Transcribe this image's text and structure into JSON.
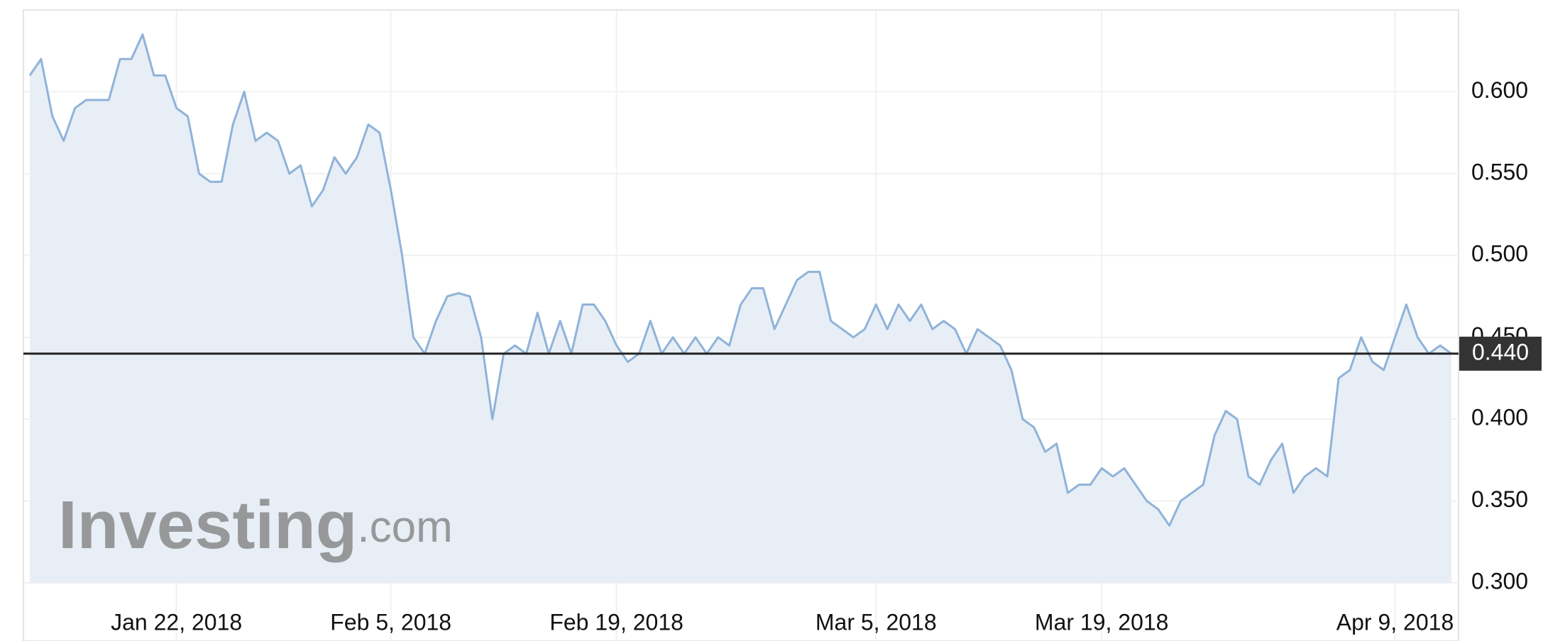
{
  "chart_data": {
    "type": "area",
    "categories": [
      null,
      null,
      null,
      null,
      null,
      null,
      null,
      null,
      null,
      null,
      null,
      null,
      null,
      "Jan 22, 2018",
      null,
      null,
      null,
      null,
      null,
      null,
      null,
      null,
      null,
      null,
      null,
      null,
      null,
      null,
      null,
      null,
      null,
      null,
      "Feb 5, 2018",
      null,
      null,
      null,
      null,
      null,
      null,
      null,
      null,
      null,
      null,
      null,
      null,
      null,
      null,
      null,
      null,
      null,
      null,
      null,
      "Feb 19, 2018",
      null,
      null,
      null,
      null,
      null,
      null,
      null,
      null,
      null,
      null,
      null,
      null,
      null,
      null,
      null,
      null,
      null,
      null,
      null,
      null,
      null,
      null,
      "Mar 5, 2018",
      null,
      null,
      null,
      null,
      null,
      null,
      null,
      null,
      null,
      null,
      null,
      null,
      null,
      null,
      null,
      null,
      null,
      null,
      null,
      "Mar 19, 2018",
      null,
      null,
      null,
      null,
      null,
      null,
      null,
      null,
      null,
      null,
      null,
      null,
      null,
      null,
      null,
      null,
      null,
      null,
      null,
      null,
      null,
      null,
      null,
      null,
      null,
      "Apr 9, 2018",
      null,
      null,
      null,
      null,
      null
    ],
    "series": [
      {
        "color": "#8fb3d9",
        "values": [
          0.61,
          0.62,
          0.585,
          0.57,
          0.59,
          0.595,
          0.595,
          0.595,
          0.62,
          0.62,
          0.635,
          0.61,
          0.61,
          0.59,
          0.585,
          0.55,
          0.545,
          0.545,
          0.58,
          0.6,
          0.57,
          0.575,
          0.57,
          0.55,
          0.555,
          0.53,
          0.54,
          0.56,
          0.55,
          0.56,
          0.58,
          0.575,
          0.54,
          0.5,
          0.45,
          0.44,
          0.46,
          0.475,
          0.477,
          0.475,
          0.45,
          0.4,
          0.44,
          0.445,
          0.44,
          0.465,
          0.44,
          0.46,
          0.44,
          0.47,
          0.47,
          0.46,
          0.445,
          0.435,
          0.44,
          0.46,
          0.44,
          0.45,
          0.44,
          0.45,
          0.44,
          0.45,
          0.445,
          0.47,
          0.48,
          0.48,
          0.455,
          0.47,
          0.485,
          0.49,
          0.49,
          0.46,
          0.455,
          0.45,
          0.455,
          0.47,
          0.455,
          0.47,
          0.46,
          0.47,
          0.455,
          0.46,
          0.455,
          0.44,
          0.455,
          0.45,
          0.445,
          0.43,
          0.4,
          0.395,
          0.38,
          0.385,
          0.355,
          0.36,
          0.36,
          0.37,
          0.365,
          0.37,
          0.36,
          0.35,
          0.345,
          0.335,
          0.35,
          0.355,
          0.36,
          0.39,
          0.405,
          0.4,
          0.365,
          0.36,
          0.375,
          0.385,
          0.355,
          0.365,
          0.37,
          0.365,
          0.425,
          0.43,
          0.45,
          0.435,
          0.43,
          0.45,
          0.47,
          0.45,
          0.44,
          0.445,
          0.44
        ]
      }
    ],
    "ylim": [
      0.3,
      0.65
    ],
    "yticks": [
      {
        "value": 0.3,
        "label": "0.300"
      },
      {
        "value": 0.35,
        "label": "0.350"
      },
      {
        "value": 0.4,
        "label": "0.400"
      },
      {
        "value": 0.45,
        "label": "0.450"
      },
      {
        "value": 0.5,
        "label": "0.500"
      },
      {
        "value": 0.55,
        "label": "0.550"
      },
      {
        "value": 0.6,
        "label": "0.600"
      }
    ],
    "last_value": {
      "value": 0.44,
      "label": "0.440"
    },
    "grid": true,
    "watermark": {
      "brand": "Investing",
      "suffix": ".com"
    }
  }
}
